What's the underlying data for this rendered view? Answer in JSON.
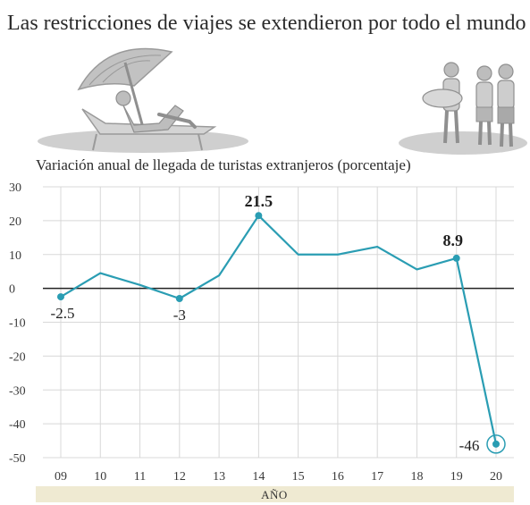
{
  "chart_data": {
    "type": "line",
    "title": "Las restricciones de viajes se extendieron por todo el mundo",
    "subtitle": "Variación anual de llegada de turistas extranjeros (porcentaje)",
    "xlabel": "AÑO",
    "ylabel": "",
    "categories": [
      "09",
      "10",
      "11",
      "12",
      "13",
      "14",
      "15",
      "16",
      "17",
      "18",
      "19",
      "20"
    ],
    "series": [
      {
        "values": [
          -2.5,
          4.5,
          1,
          -3,
          3.8,
          21.5,
          10,
          10,
          12.3,
          5.6,
          8.9,
          -46
        ]
      }
    ],
    "ylim": [
      -50,
      30
    ],
    "yticks": [
      30,
      20,
      10,
      0,
      -10,
      -20,
      -30,
      -40,
      -50
    ],
    "data_labels": [
      {
        "index": 0,
        "text": "-2.5"
      },
      {
        "index": 3,
        "text": "-3"
      },
      {
        "index": 5,
        "text": "21.5"
      },
      {
        "index": 10,
        "text": "8.9"
      },
      {
        "index": 11,
        "text": "-46"
      }
    ],
    "grid": true,
    "colors": {
      "line": "#2a9db3",
      "grid": "#d8d8d8",
      "axis_band": "#efead2",
      "illustration": "#a8a8a8"
    }
  },
  "illustrations": [
    "beach-sunbather-icon",
    "tourists-group-icon"
  ]
}
